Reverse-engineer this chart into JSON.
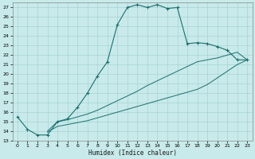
{
  "xlabel": "Humidex (Indice chaleur)",
  "xlim": [
    -0.5,
    23.5
  ],
  "ylim": [
    13,
    27.5
  ],
  "xticks": [
    0,
    1,
    2,
    3,
    4,
    5,
    6,
    7,
    8,
    9,
    10,
    11,
    12,
    13,
    14,
    15,
    16,
    17,
    18,
    19,
    20,
    21,
    22,
    23
  ],
  "yticks": [
    13,
    14,
    15,
    16,
    17,
    18,
    19,
    20,
    21,
    22,
    23,
    24,
    25,
    26,
    27
  ],
  "bg_color": "#c8eaea",
  "grid_color": "#a8d4d4",
  "line_color": "#1a6e6e",
  "line1_x": [
    0,
    1,
    2,
    3,
    4,
    5,
    6,
    7,
    8,
    9,
    10,
    11,
    12,
    13,
    14,
    15,
    16,
    17,
    18,
    19,
    20,
    21,
    22,
    23
  ],
  "line1_y": [
    15.5,
    14.2,
    13.6,
    13.6,
    15.0,
    15.3,
    16.5,
    18.0,
    19.8,
    21.3,
    25.2,
    27.0,
    27.3,
    27.0,
    27.3,
    26.9,
    27.0,
    23.2,
    23.3,
    23.2,
    22.9,
    22.5,
    21.5,
    21.5
  ],
  "line2_x": [
    3,
    4,
    5,
    6,
    7,
    8,
    9,
    10,
    11,
    12,
    13,
    14,
    15,
    16,
    17,
    18,
    19,
    20,
    21,
    22,
    23
  ],
  "line2_y": [
    14.0,
    15.0,
    15.2,
    15.5,
    15.8,
    16.2,
    16.7,
    17.2,
    17.7,
    18.2,
    18.8,
    19.3,
    19.8,
    20.3,
    20.8,
    21.3,
    21.5,
    21.7,
    22.0,
    22.3,
    21.5
  ],
  "line3_x": [
    3,
    4,
    5,
    6,
    7,
    8,
    9,
    10,
    11,
    12,
    13,
    14,
    15,
    16,
    17,
    18,
    19,
    20,
    21,
    22,
    23
  ],
  "line3_y": [
    13.9,
    14.5,
    14.7,
    14.9,
    15.1,
    15.4,
    15.7,
    16.0,
    16.3,
    16.6,
    16.9,
    17.2,
    17.5,
    17.8,
    18.1,
    18.4,
    18.9,
    19.6,
    20.3,
    21.0,
    21.5
  ]
}
